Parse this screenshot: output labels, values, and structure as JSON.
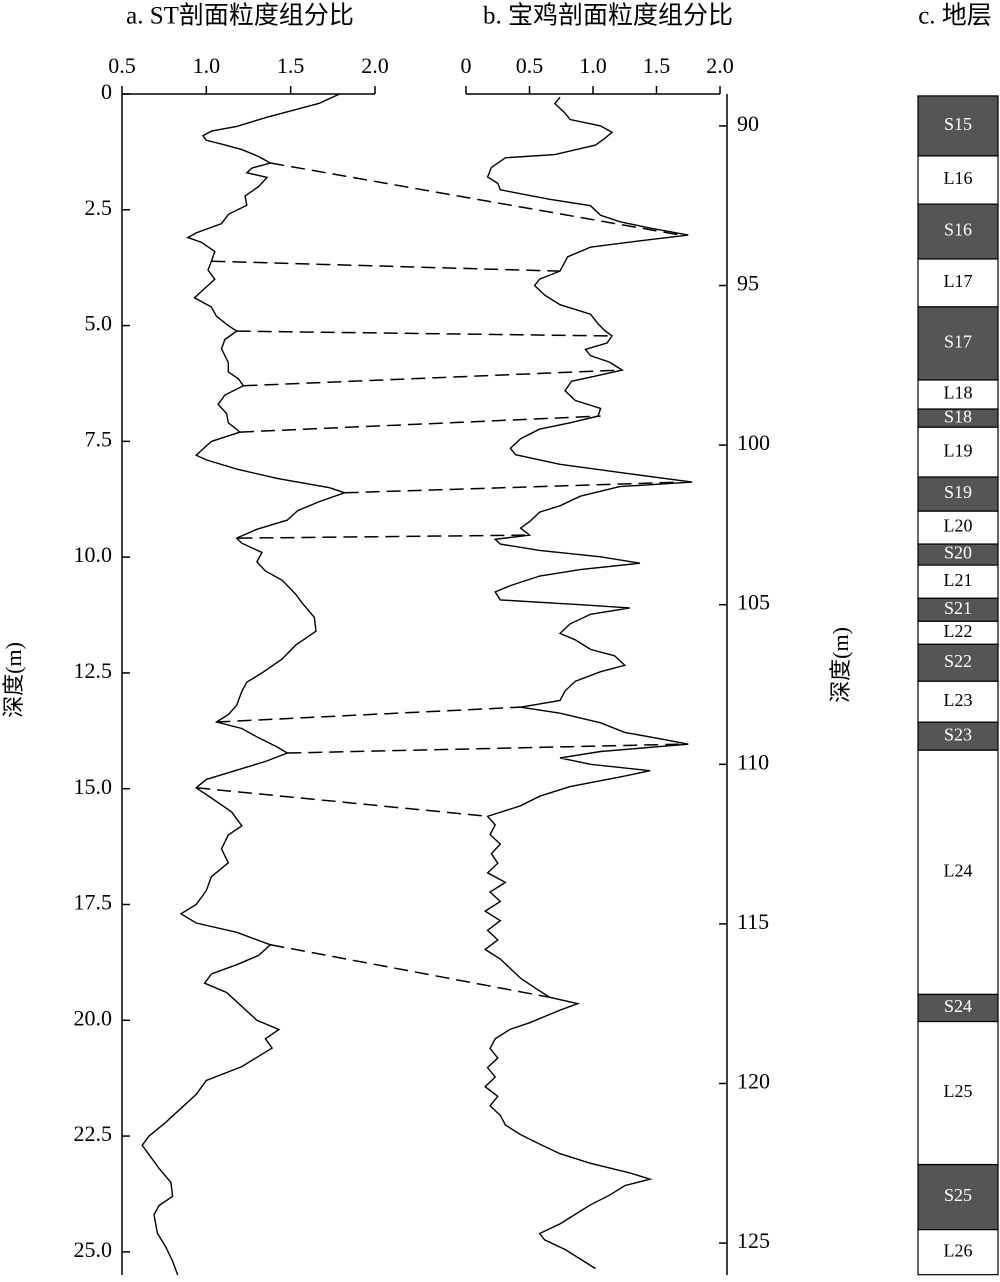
{
  "chart_data": [
    {
      "type": "line",
      "title": "a. ST剖面粒度组分比",
      "y_label": "深度(m)",
      "xlim": [
        0.5,
        2.0
      ],
      "xticks": [
        0.5,
        {
          "value": 1,
          "label": "1.0"
        },
        1.5,
        {
          "value": 2,
          "label": "2.0"
        }
      ],
      "ylim": [
        0,
        25.5
      ],
      "yticks": [
        0,
        2.5,
        {
          "value": 5,
          "label": "5.0"
        },
        7.5,
        {
          "value": 10,
          "label": "10.0"
        },
        12.5,
        {
          "value": 15,
          "label": "15.0"
        },
        17.5,
        {
          "value": 20,
          "label": "20.0"
        },
        22.5,
        {
          "value": 25,
          "label": "25.0"
        }
      ],
      "y": [
        0,
        0.2,
        0.5,
        0.7,
        0.8,
        0.9,
        1.0,
        1.1,
        1.2,
        1.35,
        1.49,
        1.6,
        1.7,
        1.8,
        2.0,
        2.2,
        2.4,
        2.6,
        2.8,
        3.0,
        3.1,
        3.2,
        3.4,
        3.61,
        3.8,
        4.0,
        4.2,
        4.4,
        4.6,
        4.8,
        5.0,
        5.12,
        5.3,
        5.5,
        5.8,
        6.0,
        6.15,
        6.3,
        6.5,
        6.7,
        6.9,
        7.1,
        7.3,
        7.5,
        7.6,
        7.8,
        7.9,
        8.1,
        8.3,
        8.5,
        8.61,
        8.8,
        9.0,
        9.2,
        9.4,
        9.59,
        9.7,
        9.9,
        10.1,
        10.3,
        10.5,
        10.8,
        11.0,
        11.3,
        11.6,
        11.9,
        12.2,
        12.5,
        12.7,
        12.9,
        13.2,
        13.4,
        13.56,
        13.7,
        13.9,
        14.1,
        14.23,
        14.4,
        14.6,
        14.8,
        14.98,
        15.2,
        15.5,
        15.8,
        16.0,
        16.3,
        16.6,
        16.9,
        17.2,
        17.5,
        17.7,
        17.9,
        18.1,
        18.37,
        18.6,
        18.8,
        19.0,
        19.2,
        19.4,
        19.6,
        19.8,
        20.0,
        20.2,
        20.4,
        20.6,
        20.8,
        21.0,
        21.3,
        21.6,
        21.9,
        22.2,
        22.5,
        22.7,
        22.9,
        23.2,
        23.5,
        23.8,
        24.0,
        24.2,
        24.6,
        24.9,
        25.2,
        25.5
      ],
      "series": [
        {
          "color": "#000000",
          "values": [
            1.79,
            1.67,
            1.36,
            1.18,
            1.03,
            0.98,
            1.0,
            1.11,
            1.21,
            1.31,
            1.38,
            1.27,
            1.24,
            1.36,
            1.31,
            1.23,
            1.24,
            1.13,
            1.09,
            0.94,
            0.89,
            0.97,
            1.05,
            1.03,
            1.01,
            1.05,
            0.99,
            0.93,
            1.03,
            1.06,
            1.13,
            1.18,
            1.11,
            1.09,
            1.13,
            1.13,
            1.19,
            1.22,
            1.11,
            1.07,
            1.12,
            1.13,
            1.2,
            1.03,
            1.0,
            0.94,
            1.0,
            1.18,
            1.42,
            1.73,
            1.82,
            1.67,
            1.54,
            1.48,
            1.3,
            1.18,
            1.21,
            1.33,
            1.3,
            1.35,
            1.45,
            1.53,
            1.57,
            1.64,
            1.65,
            1.53,
            1.45,
            1.33,
            1.24,
            1.21,
            1.18,
            1.13,
            1.06,
            1.21,
            1.31,
            1.42,
            1.48,
            1.36,
            1.18,
            1.0,
            0.94,
            1.03,
            1.15,
            1.21,
            1.13,
            1.09,
            1.13,
            1.03,
            1.0,
            0.94,
            0.85,
            0.94,
            1.18,
            1.38,
            1.31,
            1.18,
            1.03,
            0.99,
            1.12,
            1.18,
            1.24,
            1.3,
            1.43,
            1.35,
            1.39,
            1.3,
            1.21,
            1.0,
            0.94,
            0.85,
            0.76,
            0.66,
            0.62,
            0.66,
            0.72,
            0.79,
            0.8,
            0.72,
            0.69,
            0.71,
            0.76,
            0.8,
            0.83
          ]
        }
      ]
    },
    {
      "type": "line",
      "title": "b. 宝鸡剖面粒度组分比",
      "y_label": "深度(m)",
      "xlim": [
        0,
        2.0
      ],
      "xticks": [
        0,
        0.5,
        {
          "value": 1,
          "label": "1.0"
        },
        1.5,
        {
          "value": 2,
          "label": "2.0"
        }
      ],
      "ylim": [
        89,
        126
      ],
      "yticks": [
        90,
        95,
        100,
        105,
        110,
        115,
        120,
        125
      ],
      "y": [
        89.1,
        89.3,
        89.6,
        89.8,
        90.0,
        90.2,
        90.4,
        90.6,
        90.9,
        91.0,
        91.3,
        91.6,
        91.8,
        92.0,
        92.3,
        92.5,
        92.8,
        93.0,
        93.2,
        93.42,
        93.6,
        93.8,
        94.1,
        94.55,
        94.8,
        95.0,
        95.3,
        95.6,
        95.9,
        96.2,
        96.4,
        96.58,
        96.8,
        97.0,
        97.2,
        97.4,
        97.65,
        97.8,
        98.0,
        98.3,
        98.6,
        98.85,
        99.09,
        99.3,
        99.5,
        99.8,
        100.1,
        100.3,
        100.6,
        100.9,
        101.16,
        101.3,
        101.6,
        101.9,
        102.1,
        102.4,
        102.6,
        102.82,
        102.95,
        103.1,
        103.3,
        103.5,
        103.7,
        103.9,
        104.1,
        104.4,
        104.6,
        104.85,
        105.0,
        105.1,
        105.3,
        105.6,
        105.9,
        106.1,
        106.4,
        106.6,
        106.9,
        107.1,
        107.4,
        107.7,
        108.0,
        108.21,
        108.4,
        108.7,
        109.0,
        109.2,
        109.37,
        109.6,
        109.8,
        110.0,
        110.2,
        110.4,
        110.7,
        111.0,
        111.3,
        111.63,
        111.9,
        112.2,
        112.5,
        112.8,
        113.1,
        113.4,
        113.7,
        114.0,
        114.3,
        114.6,
        114.9,
        115.2,
        115.5,
        115.8,
        116.1,
        116.4,
        116.7,
        117.0,
        117.3,
        117.5,
        117.7,
        117.9,
        118.1,
        118.3,
        118.6,
        118.9,
        119.2,
        119.5,
        119.8,
        120.1,
        120.4,
        120.7,
        121.0,
        121.3,
        121.6,
        121.9,
        122.2,
        122.5,
        122.8,
        123.0,
        123.2,
        123.5,
        123.8,
        124.1,
        124.4,
        124.7,
        124.9,
        125.2,
        125.5,
        125.8
      ],
      "series": [
        {
          "color": "#000000",
          "values": [
            0.74,
            0.7,
            0.78,
            0.82,
            1.06,
            1.15,
            1.09,
            1.02,
            0.7,
            0.31,
            0.2,
            0.17,
            0.25,
            0.27,
            0.66,
            0.98,
            1.06,
            1.21,
            1.45,
            1.75,
            1.37,
            0.98,
            0.8,
            0.74,
            0.58,
            0.54,
            0.62,
            0.74,
            0.98,
            1.04,
            1.09,
            1.15,
            1.11,
            0.94,
            0.98,
            1.13,
            1.23,
            1.06,
            0.83,
            0.78,
            0.86,
            1.06,
            1.04,
            0.82,
            0.58,
            0.43,
            0.35,
            0.39,
            0.74,
            1.29,
            1.78,
            1.21,
            0.9,
            0.74,
            0.58,
            0.5,
            0.43,
            0.5,
            0.23,
            0.27,
            0.58,
            1.06,
            1.37,
            0.9,
            0.58,
            0.35,
            0.23,
            0.27,
            0.9,
            1.29,
            0.98,
            0.82,
            0.74,
            0.86,
            0.98,
            1.17,
            1.25,
            1.06,
            0.86,
            0.78,
            0.74,
            0.43,
            0.74,
            1.06,
            1.25,
            1.53,
            1.75,
            1.06,
            0.74,
            0.98,
            1.45,
            1.21,
            0.82,
            0.58,
            0.43,
            0.17,
            0.23,
            0.19,
            0.27,
            0.2,
            0.25,
            0.17,
            0.31,
            0.19,
            0.27,
            0.15,
            0.27,
            0.17,
            0.25,
            0.15,
            0.27,
            0.35,
            0.43,
            0.54,
            0.66,
            0.88,
            0.74,
            0.62,
            0.5,
            0.35,
            0.23,
            0.19,
            0.25,
            0.17,
            0.23,
            0.15,
            0.25,
            0.19,
            0.27,
            0.31,
            0.43,
            0.58,
            0.74,
            0.98,
            1.29,
            1.45,
            1.25,
            1.13,
            0.98,
            0.86,
            0.74,
            0.58,
            0.62,
            0.78,
            0.9,
            1.02
          ]
        }
      ]
    },
    {
      "type": "column",
      "title": "c. 地层",
      "layers": [
        {
          "label": "S15",
          "top": 89.06,
          "bottom": 90.94,
          "color": "#555555"
        },
        {
          "label": "L16",
          "top": 90.94,
          "bottom": 92.45,
          "color": "#ffffff"
        },
        {
          "label": "S16",
          "top": 92.45,
          "bottom": 94.17,
          "color": "#555555"
        },
        {
          "label": "L17",
          "top": 94.17,
          "bottom": 95.67,
          "color": "#ffffff"
        },
        {
          "label": "S17",
          "top": 95.67,
          "bottom": 97.96,
          "color": "#555555"
        },
        {
          "label": "L18",
          "top": 97.96,
          "bottom": 98.87,
          "color": "#ffffff"
        },
        {
          "label": "S18",
          "top": 98.87,
          "bottom": 99.44,
          "color": "#555555"
        },
        {
          "label": "L19",
          "top": 99.44,
          "bottom": 101.0,
          "color": "#ffffff"
        },
        {
          "label": "S19",
          "top": 101.0,
          "bottom": 102.07,
          "color": "#555555"
        },
        {
          "label": "L20",
          "top": 102.07,
          "bottom": 103.1,
          "color": "#ffffff"
        },
        {
          "label": "S20",
          "top": 103.1,
          "bottom": 103.76,
          "color": "#555555"
        },
        {
          "label": "L21",
          "top": 103.76,
          "bottom": 104.8,
          "color": "#ffffff"
        },
        {
          "label": "S21",
          "top": 104.8,
          "bottom": 105.52,
          "color": "#555555"
        },
        {
          "label": "L22",
          "top": 105.52,
          "bottom": 106.24,
          "color": "#ffffff"
        },
        {
          "label": "S22",
          "top": 106.24,
          "bottom": 107.4,
          "color": "#555555"
        },
        {
          "label": "L23",
          "top": 107.4,
          "bottom": 108.68,
          "color": "#ffffff"
        },
        {
          "label": "S23",
          "top": 108.68,
          "bottom": 109.56,
          "color": "#555555"
        },
        {
          "label": "L24",
          "top": 109.56,
          "bottom": 117.21,
          "color": "#ffffff"
        },
        {
          "label": "S24",
          "top": 117.21,
          "bottom": 118.06,
          "color": "#555555"
        },
        {
          "label": "L25",
          "top": 118.06,
          "bottom": 122.54,
          "color": "#ffffff"
        },
        {
          "label": "S25",
          "top": 122.54,
          "bottom": 124.58,
          "color": "#555555"
        },
        {
          "label": "L26",
          "top": 124.58,
          "bottom": 125.99,
          "color": "#ffffff"
        }
      ]
    }
  ],
  "tie_lines": [
    {
      "a_depth": 1.49,
      "a_value": 1.38,
      "b_depth": 93.42,
      "b_value": 1.69
    },
    {
      "a_depth": 3.61,
      "a_value": 1.03,
      "b_depth": 94.55,
      "b_value": 0.74
    },
    {
      "a_depth": 5.12,
      "a_value": 1.18,
      "b_depth": 96.58,
      "b_value": 1.13
    },
    {
      "a_depth": 6.3,
      "a_value": 1.22,
      "b_depth": 97.65,
      "b_value": 1.21
    },
    {
      "a_depth": 7.3,
      "a_value": 1.2,
      "b_depth": 99.09,
      "b_value": 1.06
    },
    {
      "a_depth": 8.61,
      "a_value": 1.82,
      "b_depth": 101.16,
      "b_value": 1.69
    },
    {
      "a_depth": 9.59,
      "a_value": 1.19,
      "b_depth": 102.82,
      "b_value": 0.5
    },
    {
      "a_depth": 13.56,
      "a_value": 1.06,
      "b_depth": 108.21,
      "b_value": 0.43
    },
    {
      "a_depth": 14.23,
      "a_value": 1.48,
      "b_depth": 109.37,
      "b_value": 1.69
    },
    {
      "a_depth": 14.98,
      "a_value": 0.94,
      "b_depth": 111.63,
      "b_value": 0.17
    },
    {
      "a_depth": 18.37,
      "a_value": 1.38,
      "b_depth": 117.3,
      "b_value": 0.66
    }
  ]
}
